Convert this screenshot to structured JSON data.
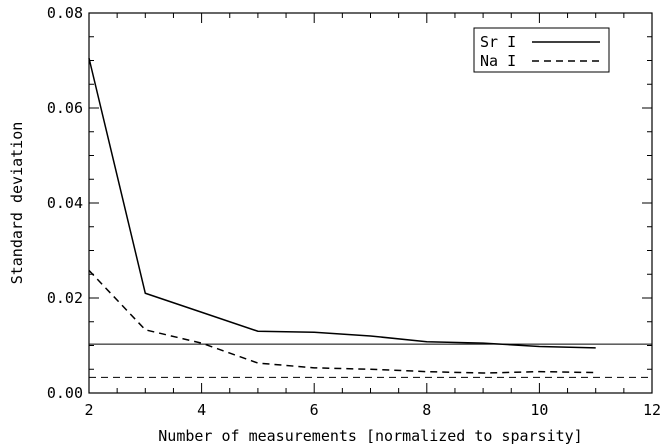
{
  "chart_data": {
    "type": "line",
    "title": "",
    "xlabel": "Number of measurements [normalized to sparsity]",
    "ylabel": "Standard deviation",
    "xlim": [
      2,
      12
    ],
    "ylim": [
      0,
      0.08
    ],
    "xticks": [
      2,
      4,
      6,
      8,
      10,
      12
    ],
    "xtick_labels": [
      "2",
      "4",
      "6",
      "8",
      "10",
      "12"
    ],
    "yticks": [
      0,
      0.02,
      0.04,
      0.06,
      0.08
    ],
    "ytick_labels": [
      "0.00",
      "0.02",
      "0.04",
      "0.06",
      "0.08"
    ],
    "grid": false,
    "legend_position": "top-right",
    "series": [
      {
        "name": "Sr I",
        "style": "solid",
        "x": [
          2,
          3,
          4,
          5,
          6,
          7,
          8,
          9,
          10,
          11
        ],
        "y": [
          0.0705,
          0.021,
          0.017,
          0.013,
          0.0128,
          0.012,
          0.0108,
          0.0105,
          0.0098,
          0.0095
        ]
      },
      {
        "name": "Na I",
        "style": "dashed",
        "x": [
          2,
          3,
          4,
          5,
          6,
          7,
          8,
          9,
          10,
          11
        ],
        "y": [
          0.0258,
          0.0133,
          0.0105,
          0.0063,
          0.0053,
          0.005,
          0.0045,
          0.0042,
          0.0045,
          0.0043
        ]
      }
    ],
    "reference_lines": [
      {
        "style": "solid",
        "y": 0.0103
      },
      {
        "style": "dashed",
        "y": 0.0033
      }
    ]
  }
}
